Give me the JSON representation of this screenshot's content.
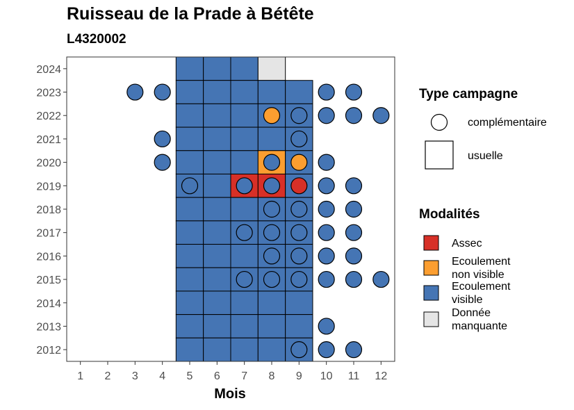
{
  "chart_data": {
    "type": "heatmap",
    "title": "Ruisseau de la Prade à Bétête",
    "subtitle": "L4320002",
    "xlabel": "Mois",
    "ylabel": "",
    "x_ticks": [
      1,
      2,
      3,
      4,
      5,
      6,
      7,
      8,
      9,
      10,
      11,
      12
    ],
    "y_ticks": [
      2012,
      2013,
      2014,
      2015,
      2016,
      2017,
      2018,
      2019,
      2020,
      2021,
      2022,
      2023,
      2024
    ],
    "xlim": [
      0.5,
      12.5
    ],
    "ylim": [
      2011.5,
      2024.5
    ],
    "grid": false,
    "colors": {
      "assec": "#d73027",
      "non_visible": "#fc9e30",
      "visible": "#4575b4",
      "manquante": "#e5e5e5"
    },
    "legend_shape": {
      "title": "Type campagne",
      "items": [
        {
          "label": "complémentaire",
          "shape": "circle"
        },
        {
          "label": "usuelle",
          "shape": "square"
        }
      ]
    },
    "legend_fill": {
      "title": "Modalités",
      "items": [
        {
          "label": [
            "Assec"
          ],
          "key": "assec"
        },
        {
          "label": [
            "Ecoulement",
            "non visible"
          ],
          "key": "non_visible"
        },
        {
          "label": [
            "Ecoulement",
            "visible"
          ],
          "key": "visible"
        },
        {
          "label": [
            "Donnée",
            "manquante"
          ],
          "key": "manquante"
        }
      ]
    },
    "usuelle": [
      {
        "year": 2024,
        "months": {
          "5": "visible",
          "6": "visible",
          "7": "visible",
          "8": "manquante"
        }
      },
      {
        "year": 2023,
        "months": {
          "5": "visible",
          "6": "visible",
          "7": "visible",
          "8": "visible",
          "9": "visible"
        }
      },
      {
        "year": 2022,
        "months": {
          "5": "visible",
          "6": "visible",
          "7": "visible",
          "8": "visible",
          "9": "visible"
        }
      },
      {
        "year": 2021,
        "months": {
          "5": "visible",
          "6": "visible",
          "7": "visible",
          "8": "visible",
          "9": "visible"
        }
      },
      {
        "year": 2020,
        "months": {
          "5": "visible",
          "6": "visible",
          "7": "visible",
          "8": "non_visible",
          "9": "visible"
        }
      },
      {
        "year": 2019,
        "months": {
          "5": "visible",
          "6": "visible",
          "7": "assec",
          "8": "assec",
          "9": "visible"
        }
      },
      {
        "year": 2018,
        "months": {
          "5": "visible",
          "6": "visible",
          "7": "visible",
          "8": "visible",
          "9": "visible"
        }
      },
      {
        "year": 2017,
        "months": {
          "5": "visible",
          "6": "visible",
          "7": "visible",
          "8": "visible",
          "9": "visible"
        }
      },
      {
        "year": 2016,
        "months": {
          "5": "visible",
          "6": "visible",
          "7": "visible",
          "8": "visible",
          "9": "visible"
        }
      },
      {
        "year": 2015,
        "months": {
          "5": "visible",
          "6": "visible",
          "7": "visible",
          "8": "visible",
          "9": "visible"
        }
      },
      {
        "year": 2014,
        "months": {
          "5": "visible",
          "6": "visible",
          "7": "visible",
          "8": "visible",
          "9": "visible"
        }
      },
      {
        "year": 2013,
        "months": {
          "5": "visible",
          "6": "visible",
          "7": "visible",
          "8": "visible",
          "9": "visible"
        }
      },
      {
        "year": 2012,
        "months": {
          "5": "visible",
          "6": "visible",
          "7": "visible",
          "8": "visible",
          "9": "visible"
        }
      }
    ],
    "complementaire": [
      {
        "year": 2023,
        "month": 3,
        "value": "visible"
      },
      {
        "year": 2023,
        "month": 4,
        "value": "visible"
      },
      {
        "year": 2023,
        "month": 10,
        "value": "visible"
      },
      {
        "year": 2023,
        "month": 11,
        "value": "visible"
      },
      {
        "year": 2022,
        "month": 8,
        "value": "non_visible"
      },
      {
        "year": 2022,
        "month": 9,
        "value": "visible"
      },
      {
        "year": 2022,
        "month": 10,
        "value": "visible"
      },
      {
        "year": 2022,
        "month": 11,
        "value": "visible"
      },
      {
        "year": 2022,
        "month": 12,
        "value": "visible"
      },
      {
        "year": 2021,
        "month": 4,
        "value": "visible"
      },
      {
        "year": 2021,
        "month": 9,
        "value": "visible"
      },
      {
        "year": 2020,
        "month": 4,
        "value": "visible"
      },
      {
        "year": 2020,
        "month": 8,
        "value": "visible"
      },
      {
        "year": 2020,
        "month": 9,
        "value": "non_visible"
      },
      {
        "year": 2020,
        "month": 10,
        "value": "visible"
      },
      {
        "year": 2019,
        "month": 5,
        "value": "visible"
      },
      {
        "year": 2019,
        "month": 7,
        "value": "visible"
      },
      {
        "year": 2019,
        "month": 8,
        "value": "visible"
      },
      {
        "year": 2019,
        "month": 9,
        "value": "assec"
      },
      {
        "year": 2019,
        "month": 10,
        "value": "visible"
      },
      {
        "year": 2019,
        "month": 11,
        "value": "visible"
      },
      {
        "year": 2018,
        "month": 8,
        "value": "visible"
      },
      {
        "year": 2018,
        "month": 9,
        "value": "visible"
      },
      {
        "year": 2018,
        "month": 10,
        "value": "visible"
      },
      {
        "year": 2018,
        "month": 11,
        "value": "visible"
      },
      {
        "year": 2017,
        "month": 7,
        "value": "visible"
      },
      {
        "year": 2017,
        "month": 8,
        "value": "visible"
      },
      {
        "year": 2017,
        "month": 9,
        "value": "visible"
      },
      {
        "year": 2017,
        "month": 10,
        "value": "visible"
      },
      {
        "year": 2017,
        "month": 11,
        "value": "visible"
      },
      {
        "year": 2016,
        "month": 8,
        "value": "visible"
      },
      {
        "year": 2016,
        "month": 9,
        "value": "visible"
      },
      {
        "year": 2016,
        "month": 10,
        "value": "visible"
      },
      {
        "year": 2016,
        "month": 11,
        "value": "visible"
      },
      {
        "year": 2015,
        "month": 7,
        "value": "visible"
      },
      {
        "year": 2015,
        "month": 8,
        "value": "visible"
      },
      {
        "year": 2015,
        "month": 9,
        "value": "visible"
      },
      {
        "year": 2015,
        "month": 10,
        "value": "visible"
      },
      {
        "year": 2015,
        "month": 11,
        "value": "visible"
      },
      {
        "year": 2015,
        "month": 12,
        "value": "visible"
      },
      {
        "year": 2013,
        "month": 10,
        "value": "visible"
      },
      {
        "year": 2012,
        "month": 9,
        "value": "visible"
      },
      {
        "year": 2012,
        "month": 10,
        "value": "visible"
      },
      {
        "year": 2012,
        "month": 11,
        "value": "visible"
      }
    ]
  }
}
